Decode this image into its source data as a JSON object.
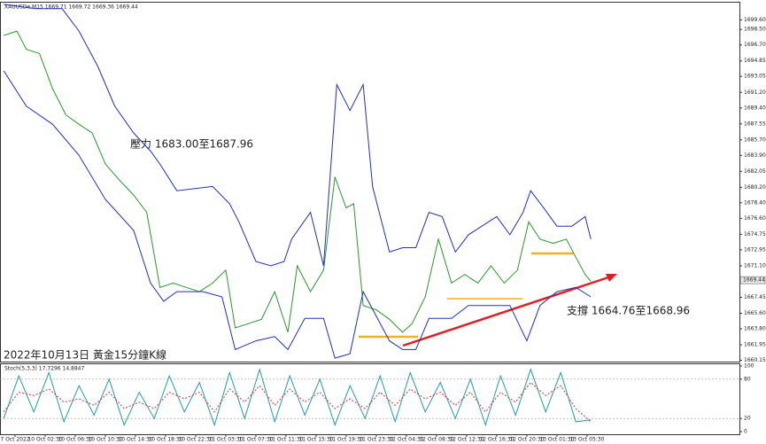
{
  "chart_data": [
    {
      "type": "line",
      "title": "XAUUSDe,M15 1669.71 1669.72 1669.36 1669.44",
      "annotations": [
        "壓力 1683.00至1687.96",
        "支撐 1664.76至1668.96",
        "2022年10月13日 黃金15分鐘K線"
      ],
      "current_price": 1669.44,
      "xlim": [
        0,
        393
      ],
      "xticks": [
        {
          "value": 8,
          "label": "7 Oct 2022"
        },
        {
          "value": 24,
          "label": "10 Oct 02:30"
        },
        {
          "value": 40,
          "label": "10 Oct 06:30"
        },
        {
          "value": 56,
          "label": "10 Oct 10:30"
        },
        {
          "value": 72,
          "label": "10 Oct 14:30"
        },
        {
          "value": 88,
          "label": "10 Oct 18:30"
        },
        {
          "value": 104,
          "label": "10 Oct 22:30"
        },
        {
          "value": 120,
          "label": "11 Oct 03:30"
        },
        {
          "value": 136,
          "label": "11 Oct 07:30"
        },
        {
          "value": 152,
          "label": "11 Oct 11:30"
        },
        {
          "value": 168,
          "label": "11 Oct 15:30"
        },
        {
          "value": 184,
          "label": "11 Oct 19:30"
        },
        {
          "value": 200,
          "label": "11 Oct 23:30"
        },
        {
          "value": 216,
          "label": "12 Oct 04:30"
        },
        {
          "value": 232,
          "label": "12 Oct 08:30"
        },
        {
          "value": 248,
          "label": "12 Oct 12:30"
        },
        {
          "value": 264,
          "label": "12 Oct 16:30"
        },
        {
          "value": 280,
          "label": "12 Oct 20:30"
        },
        {
          "value": 296,
          "label": "13 Oct 01:30"
        },
        {
          "value": 312,
          "label": "13 Oct 05:30"
        }
      ],
      "ylim": [
        1660.0,
        1701.6
      ],
      "yticks": [
        {
          "value": 1699.6,
          "label": "1699.60"
        },
        {
          "value": 1698.5,
          "label": "1698.50"
        },
        {
          "value": 1696.7,
          "label": "1696.70"
        },
        {
          "value": 1694.85,
          "label": "1694.85"
        },
        {
          "value": 1693.05,
          "label": "1693.05"
        },
        {
          "value": 1691.2,
          "label": "1691.20"
        },
        {
          "value": 1689.4,
          "label": "1689.40"
        },
        {
          "value": 1687.55,
          "label": "1687.55"
        },
        {
          "value": 1685.7,
          "label": "1685.70"
        },
        {
          "value": 1683.9,
          "label": "1683.90"
        },
        {
          "value": 1682.05,
          "label": "1682.05"
        },
        {
          "value": 1680.2,
          "label": "1680.20"
        },
        {
          "value": 1678.4,
          "label": "1678.40"
        },
        {
          "value": 1676.6,
          "label": "1676.60"
        },
        {
          "value": 1674.75,
          "label": "1674.75"
        },
        {
          "value": 1672.95,
          "label": "1672.95"
        },
        {
          "value": 1671.1,
          "label": "1671.10"
        },
        {
          "value": 1669.25,
          "label": "1669.25"
        },
        {
          "value": 1667.45,
          "label": "1667.45"
        },
        {
          "value": 1665.6,
          "label": "1665.60"
        },
        {
          "value": 1663.8,
          "label": "1663.80"
        },
        {
          "value": 1661.95,
          "label": "1661.95"
        },
        {
          "value": 1660.15,
          "label": "1660.15"
        }
      ],
      "series": [
        {
          "color": "#2a9a2a",
          "x": [
            2,
            9,
            14,
            21,
            28,
            35,
            42,
            49,
            56,
            64,
            71,
            78,
            85,
            92,
            99,
            106,
            113,
            120,
            125,
            132,
            139,
            146,
            153,
            158,
            165,
            172,
            178,
            184,
            188,
            193,
            200,
            207,
            214,
            219,
            226,
            233,
            240,
            247,
            254,
            261,
            268,
            275,
            281,
            287,
            294,
            301,
            306,
            311,
            314
          ],
          "values": [
            1697.8,
            1698.3,
            1696.2,
            1695.7,
            1691.6,
            1688.6,
            1687.5,
            1686.5,
            1682.9,
            1680.9,
            1679.3,
            1677.3,
            1668.6,
            1669.1,
            1668.6,
            1668.1,
            1669.1,
            1670.6,
            1663.9,
            1664.4,
            1664.9,
            1668.1,
            1663.4,
            1671.1,
            1668.1,
            1670.6,
            1681.4,
            1677.8,
            1678.3,
            1666.5,
            1666.0,
            1664.9,
            1663.4,
            1664.4,
            1667.5,
            1674.2,
            1669.1,
            1670.1,
            1669.1,
            1671.1,
            1669.1,
            1670.6,
            1676.2,
            1674.2,
            1673.7,
            1674.2,
            1672.1,
            1670.1,
            1669.3
          ]
        },
        {
          "color": "#2030c0",
          "x": [
            2,
            19,
            33,
            42,
            52,
            61,
            71,
            80,
            85,
            94,
            113,
            122,
            127,
            136,
            144,
            151,
            155,
            165,
            172,
            179,
            186,
            193,
            198,
            207,
            214,
            221,
            228,
            235,
            242,
            249,
            264,
            271,
            278,
            282,
            289,
            296,
            304,
            311,
            314
          ],
          "values": [
            1701.4,
            1700.9,
            1700.9,
            1698.3,
            1694.2,
            1689.6,
            1686.5,
            1684.4,
            1682.9,
            1679.8,
            1680.3,
            1678.3,
            1676.2,
            1671.6,
            1671.1,
            1671.6,
            1674.2,
            1677.3,
            1671.1,
            1692.1,
            1689.1,
            1692.1,
            1680.3,
            1672.7,
            1673.2,
            1673.2,
            1677.3,
            1676.8,
            1672.7,
            1674.7,
            1676.8,
            1674.7,
            1677.3,
            1679.8,
            1677.8,
            1675.7,
            1675.7,
            1676.8,
            1674.2
          ]
        },
        {
          "color": "#2030c0",
          "x": [
            2,
            14,
            28,
            42,
            56,
            71,
            80,
            87,
            94,
            108,
            118,
            125,
            136,
            146,
            153,
            162,
            172,
            178,
            186,
            193,
            207,
            214,
            221,
            228,
            240,
            249,
            264,
            271,
            280,
            287,
            296,
            306,
            314
          ],
          "values": [
            1693.7,
            1689.6,
            1687.5,
            1683.9,
            1678.8,
            1675.2,
            1669.1,
            1667.0,
            1668.1,
            1668.1,
            1667.5,
            1661.4,
            1662.4,
            1662.9,
            1661.4,
            1665.0,
            1665.0,
            1660.4,
            1660.9,
            1668.1,
            1662.4,
            1661.4,
            1661.4,
            1665.0,
            1665.0,
            1666.5,
            1666.5,
            1666.5,
            1662.4,
            1666.5,
            1668.1,
            1668.6,
            1667.5
          ]
        }
      ]
    },
    {
      "type": "line",
      "title": "Stoch(5,3,3) 17.7296 14.8847",
      "xlim": [
        0,
        393
      ],
      "ylim": [
        0,
        100
      ],
      "yticks": [
        0,
        20,
        80,
        100
      ],
      "series": [
        {
          "color": "#20a0a0",
          "x": [
            2,
            10,
            18,
            26,
            34,
            42,
            50,
            58,
            66,
            74,
            82,
            90,
            98,
            106,
            114,
            122,
            130,
            138,
            146,
            154,
            162,
            170,
            178,
            186,
            194,
            202,
            210,
            218,
            226,
            234,
            242,
            250,
            258,
            266,
            274,
            282,
            290,
            298,
            306,
            314
          ],
          "values": [
            20,
            85,
            30,
            90,
            15,
            70,
            25,
            80,
            10,
            60,
            20,
            85,
            30,
            75,
            10,
            90,
            20,
            95,
            15,
            85,
            25,
            80,
            10,
            70,
            20,
            85,
            15,
            90,
            30,
            75,
            20,
            80,
            10,
            85,
            25,
            95,
            30,
            90,
            15,
            18
          ]
        },
        {
          "color": "#e03030",
          "dashed": true,
          "x": [
            2,
            10,
            18,
            26,
            34,
            42,
            50,
            58,
            66,
            74,
            82,
            90,
            98,
            106,
            114,
            122,
            130,
            138,
            146,
            154,
            162,
            170,
            178,
            186,
            194,
            202,
            210,
            218,
            226,
            234,
            242,
            250,
            258,
            266,
            274,
            282,
            290,
            298,
            306,
            314
          ],
          "values": [
            30,
            60,
            55,
            65,
            45,
            50,
            40,
            60,
            35,
            45,
            35,
            60,
            50,
            60,
            30,
            65,
            45,
            70,
            40,
            65,
            45,
            60,
            35,
            50,
            35,
            60,
            40,
            65,
            50,
            60,
            40,
            60,
            30,
            60,
            45,
            75,
            55,
            70,
            35,
            15
          ]
        }
      ]
    }
  ]
}
